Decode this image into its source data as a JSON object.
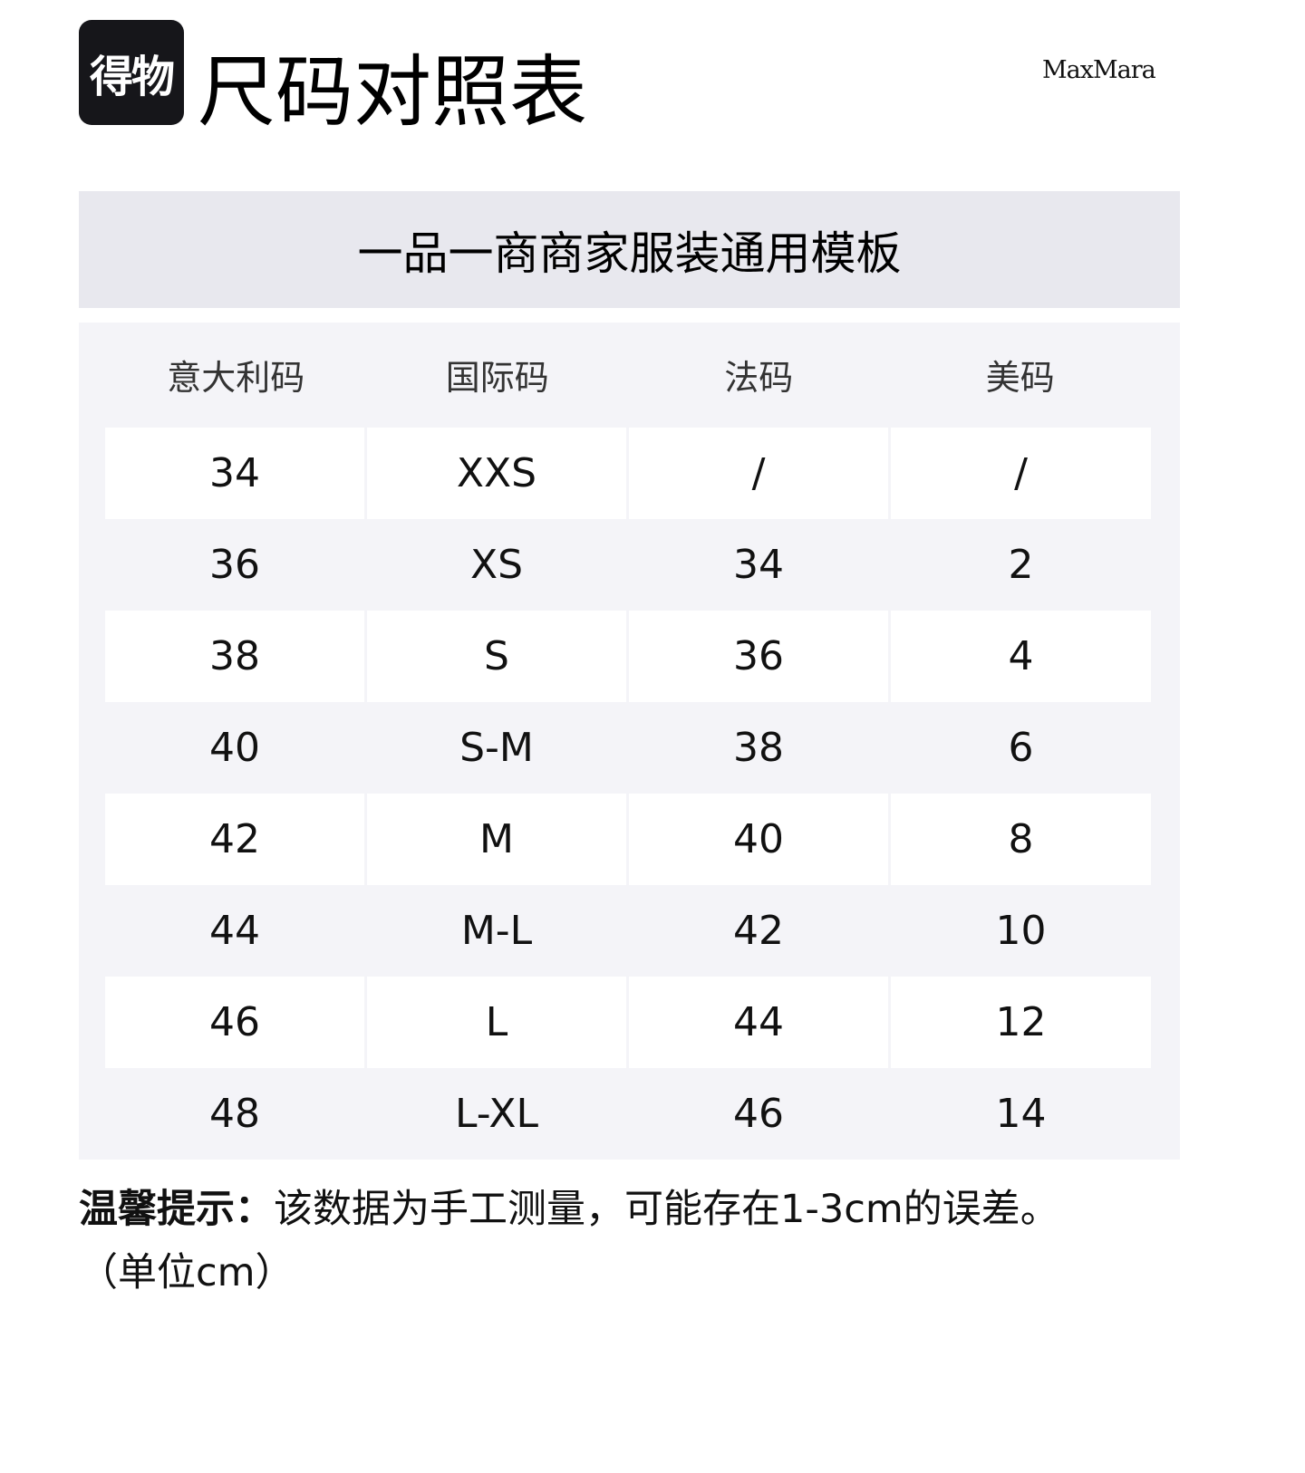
{
  "logo": {
    "text": "得物"
  },
  "title": "尺码对照表",
  "brand": "MaxMara",
  "band_title": "一品一商商家服装通用模板",
  "table": {
    "headers": [
      "意大利码",
      "国际码",
      "法码",
      "美码"
    ],
    "rows": [
      [
        "34",
        "XXS",
        "/",
        "/"
      ],
      [
        "36",
        "XS",
        "34",
        "2"
      ],
      [
        "38",
        "S",
        "36",
        "4"
      ],
      [
        "40",
        "S-M",
        "38",
        "6"
      ],
      [
        "42",
        "M",
        "40",
        "8"
      ],
      [
        "44",
        "M-L",
        "42",
        "10"
      ],
      [
        "46",
        "L",
        "44",
        "12"
      ],
      [
        "48",
        "L-XL",
        "46",
        "14"
      ]
    ]
  },
  "note": {
    "label": "温馨提示：",
    "text": "该数据为手工测量，可能存在1-3cm的误差。",
    "unit": "（单位cm）"
  },
  "colors": {
    "band": "#e8e8ee",
    "table_bg": "#f4f4f8",
    "logo_bg": "#16161a"
  }
}
